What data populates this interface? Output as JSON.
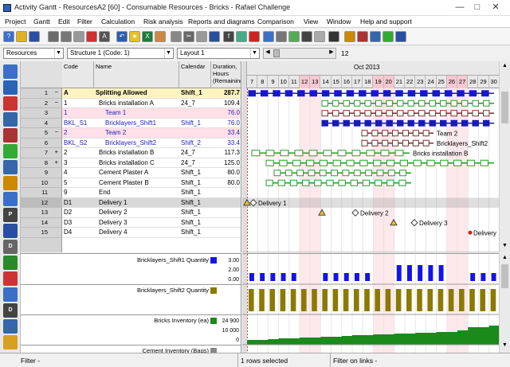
{
  "window": {
    "title": "Activity Gantt - ResourcesA2 [60] - Consumable Resources - Bricks - Rafael Challenge"
  },
  "menu": [
    "Project",
    "Gantt",
    "Edit",
    "Filter",
    "Calculation",
    "Risk analysis",
    "Reports and diagrams",
    "Comparison",
    "View",
    "Window",
    "Help and support"
  ],
  "selectors": {
    "view": "Resources",
    "structure": "Structure 1 (Code: 1)",
    "layout": "Layout 1",
    "zoom": "12"
  },
  "columns": {
    "code": "Code",
    "name": "Name",
    "calendar": "Calendar",
    "duration": "Duration, Hours (Remaining)"
  },
  "gantt": {
    "month": "Oct 2013",
    "days": [
      "7",
      "8",
      "9",
      "10",
      "11",
      "12",
      "13",
      "14",
      "15",
      "16",
      "17",
      "18",
      "19",
      "20",
      "21",
      "22",
      "23",
      "24",
      "25",
      "26",
      "27",
      "28",
      "29",
      "30"
    ],
    "weekend_days": [
      "12",
      "13",
      "19",
      "20",
      "26",
      "27"
    ]
  },
  "rows": [
    {
      "num": "1",
      "exp": "−",
      "code": "A",
      "name": "Splitting Allowed",
      "cal": "Shift_1",
      "dur": "287.7",
      "style": "group"
    },
    {
      "num": "2",
      "exp": "−",
      "code": "1",
      "name": "Bricks installation A",
      "cal": "24_7",
      "dur": "109.4",
      "style": "normal"
    },
    {
      "num": "3",
      "exp": "",
      "code": "1",
      "name": "Team 1",
      "cal": "",
      "dur": "76.0",
      "style": "pink"
    },
    {
      "num": "4",
      "exp": "",
      "code": "BKL_S1",
      "name": "Bricklayers_Shift1",
      "cal": "Shift_1",
      "dur": "76.0",
      "style": "blue"
    },
    {
      "num": "5",
      "exp": "−",
      "code": "2",
      "name": "Team 2",
      "cal": "",
      "dur": "33.4",
      "style": "pink"
    },
    {
      "num": "6",
      "exp": "",
      "code": "BKL_S2",
      "name": "Bricklayers_Shift2",
      "cal": "Shift_2",
      "dur": "33.4",
      "style": "blue"
    },
    {
      "num": "7",
      "exp": "+",
      "code": "2",
      "name": "Bricks installation B",
      "cal": "24_7",
      "dur": "117.3",
      "style": "normal"
    },
    {
      "num": "8",
      "exp": "+",
      "code": "3",
      "name": "Bricks installation C",
      "cal": "24_7",
      "dur": "125.0",
      "style": "normal"
    },
    {
      "num": "9",
      "exp": "",
      "code": "4",
      "name": "Cement Plaster A",
      "cal": "Shift_1",
      "dur": "80.0",
      "style": "normal"
    },
    {
      "num": "10",
      "exp": "",
      "code": "5",
      "name": "Cement Plaster B",
      "cal": "Shift_1",
      "dur": "80.0",
      "style": "normal"
    },
    {
      "num": "11",
      "exp": "",
      "code": "9",
      "name": "End",
      "cal": "Shift_1",
      "dur": "",
      "style": "normal"
    },
    {
      "num": "12",
      "exp": "",
      "code": "D1",
      "name": "Delivery 1",
      "cal": "Shift_1",
      "dur": "",
      "style": "selected"
    },
    {
      "num": "13",
      "exp": "",
      "code": "D2",
      "name": "Delivery 2",
      "cal": "Shift_1",
      "dur": "",
      "style": "normal"
    },
    {
      "num": "14",
      "exp": "",
      "code": "D3",
      "name": "Delivery 3",
      "cal": "Shift_1",
      "dur": "",
      "style": "normal"
    },
    {
      "num": "15",
      "exp": "",
      "code": "D4",
      "name": "Delivery 4",
      "cal": "Shift_1",
      "dur": "",
      "style": "normal"
    }
  ],
  "bar_labels": {
    "team2": "Team 2",
    "bricklayers2": "Bricklayers_Shift2",
    "bricksB": "Bricks installation B",
    "d1": "Delivery 1",
    "d2": "Delivery 2",
    "d3": "Delivery 3",
    "d4": "Delivery"
  },
  "histograms": [
    {
      "label": "Bricklayers_Shift1 Quantity",
      "color": "#1414e6",
      "ticks": [
        "3.00",
        "2.00",
        "0.00"
      ]
    },
    {
      "label": "Bricklayers_Shift2 Quantity",
      "color": "#8a7a00",
      "ticks": []
    },
    {
      "label": "Bricks Inventory (ea)",
      "color": "#1a8a1a",
      "ticks": [
        "24 900",
        "10 000",
        "0"
      ]
    },
    {
      "label": "Cement Inventory (Bags)",
      "color": "#888888",
      "ticks": []
    }
  ],
  "status": {
    "filter": "Filter -",
    "selected": "1 rows selected",
    "links": "Filter on links -"
  }
}
